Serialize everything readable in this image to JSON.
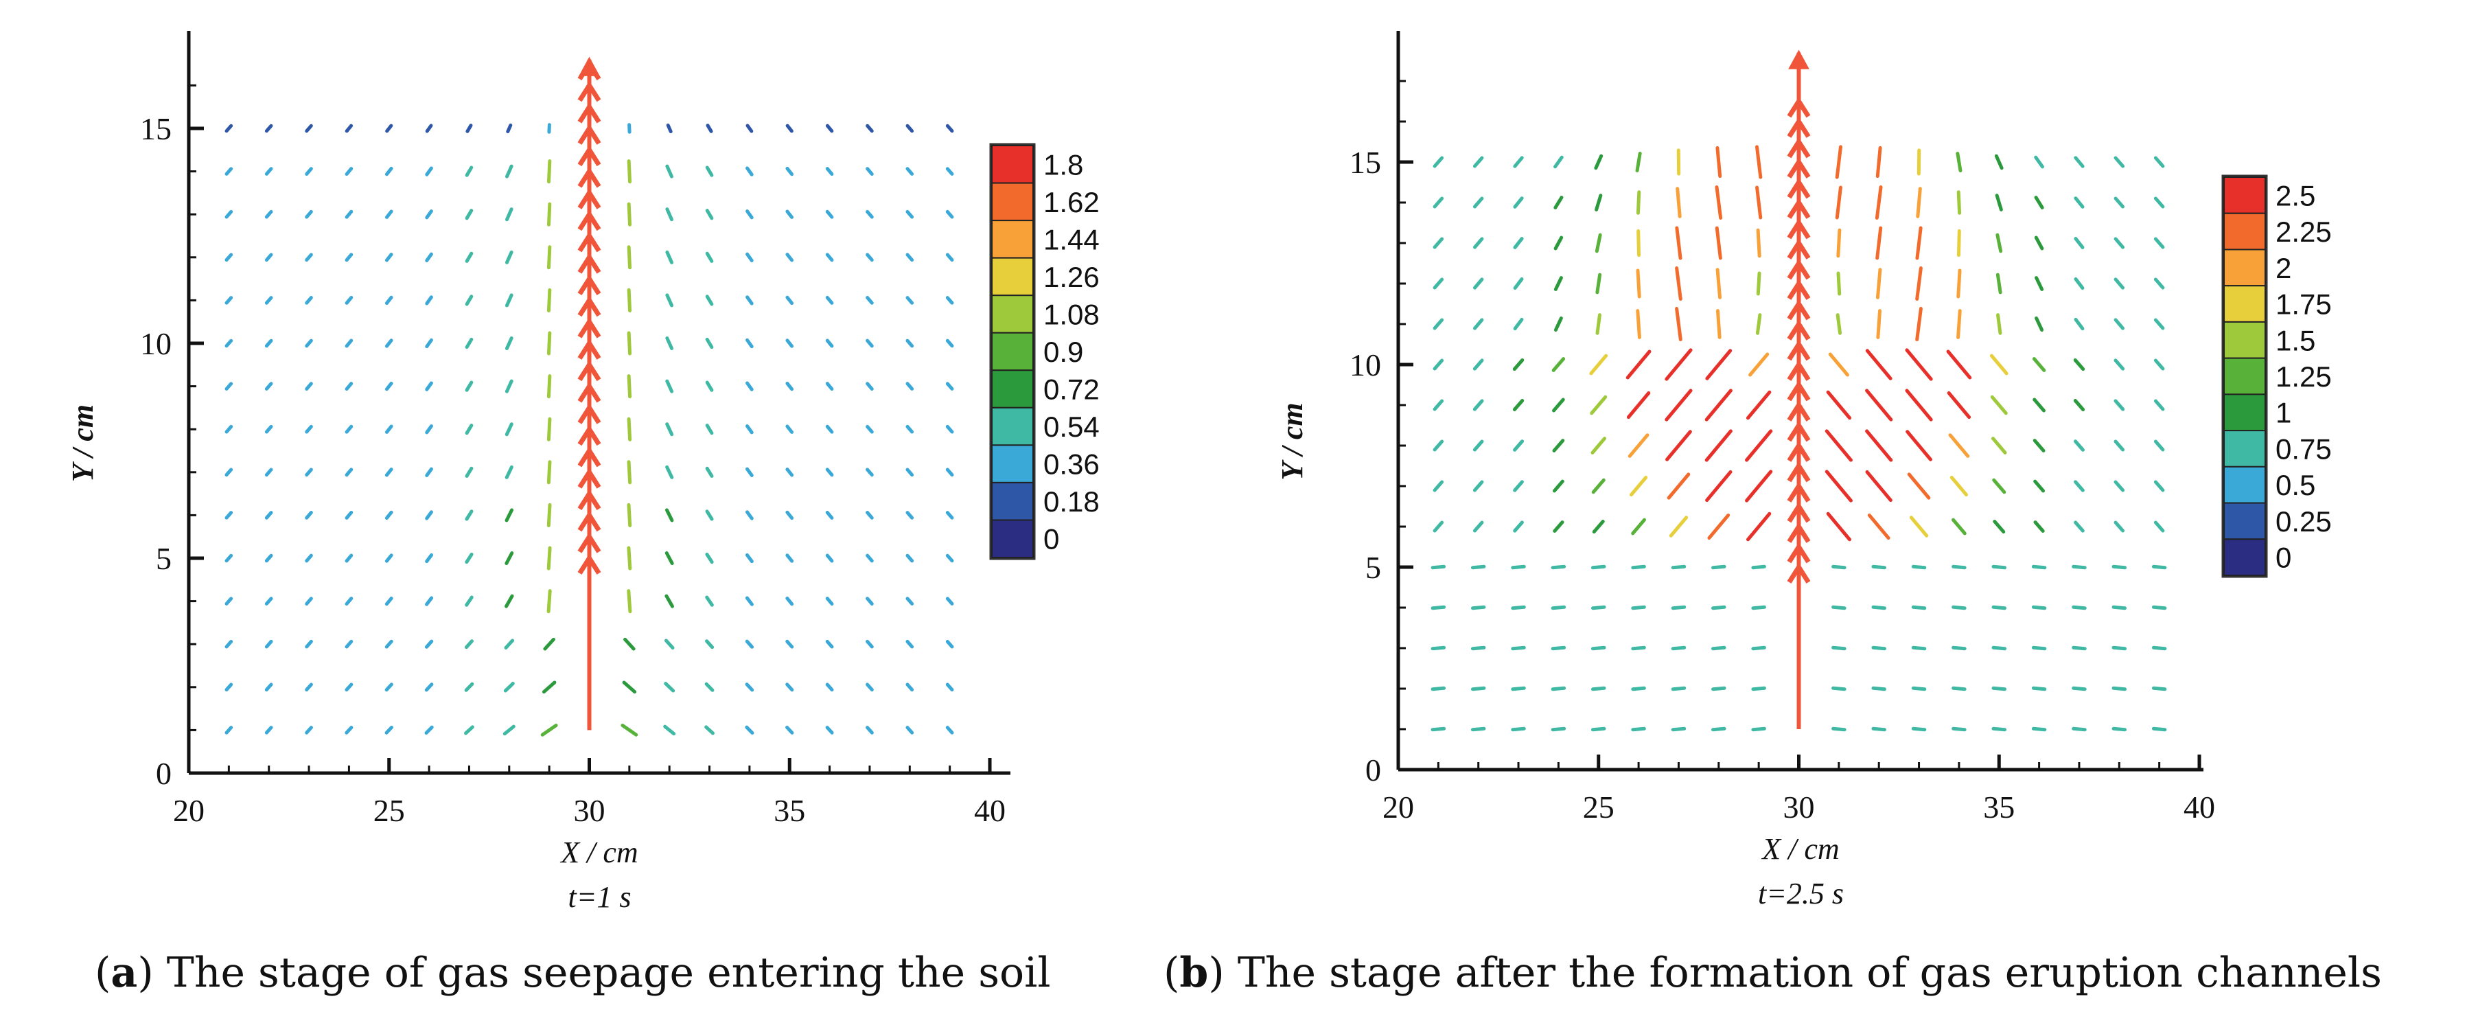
{
  "chart_data": [
    {
      "id": "a",
      "type": "vector-field",
      "xlabel": "X / cm",
      "ylabel": "Y / cm",
      "time_label": "t=1 s",
      "xlim": [
        20,
        40
      ],
      "ylim": [
        0,
        17
      ],
      "xticks": [
        20,
        25,
        30,
        35,
        40
      ],
      "yticks": [
        0,
        5,
        10,
        15
      ],
      "grid": false,
      "legend_position": "right",
      "legend_levels": [
        "1.8",
        "1.62",
        "1.44",
        "1.26",
        "1.08",
        "0.9",
        "0.72",
        "0.54",
        "0.36",
        "0.18",
        "0"
      ],
      "legend_colors": [
        "#e8302a",
        "#f26a2c",
        "#f8a138",
        "#e6cf3a",
        "#9ec93a",
        "#58b23a",
        "#2b9a3c",
        "#3fb9a4",
        "#3ba9d8",
        "#2f57a8",
        "#2a2d82"
      ],
      "max_magnitude": 1.8,
      "jet": {
        "x": 30,
        "y_start": 1,
        "y_end": 16.6,
        "arrowheads_from": 5,
        "arrowheads_to": 16.5,
        "arrowhead_step": 0.5
      },
      "field_x_range": [
        21,
        39
      ],
      "field_y_range": [
        1,
        15
      ],
      "field_step": 1
    },
    {
      "id": "b",
      "type": "vector-field",
      "xlabel": "X / cm",
      "ylabel": "Y / cm",
      "time_label": "t=2.5 s",
      "xlim": [
        20,
        40
      ],
      "ylim": [
        0,
        18
      ],
      "xticks": [
        20,
        25,
        30,
        35,
        40
      ],
      "yticks": [
        0,
        5,
        10,
        15
      ],
      "grid": false,
      "legend_position": "right",
      "legend_levels": [
        "2.5",
        "2.25",
        "2",
        "1.75",
        "1.5",
        "1.25",
        "1",
        "0.75",
        "0.5",
        "0.25",
        "0"
      ],
      "legend_colors": [
        "#e8302a",
        "#f26a2c",
        "#f8a138",
        "#e6cf3a",
        "#9ec93a",
        "#58b23a",
        "#2b9a3c",
        "#3fb9a4",
        "#3ba9d8",
        "#2f57a8",
        "#2a2d82"
      ],
      "max_magnitude": 2.5,
      "jet": {
        "x": 30,
        "y_start": 1,
        "y_end": 17.7,
        "arrowheads_from": 5,
        "arrowheads_to": 16.5,
        "arrowhead_step": 0.5
      },
      "field_x_range": [
        21,
        39
      ],
      "field_y_range": [
        1,
        15
      ],
      "field_step": 1
    }
  ],
  "captions": [
    {
      "letter": "a",
      "text": "The stage of gas seepage entering the soil"
    },
    {
      "letter": "b",
      "text": "The stage after the formation of gas eruption channels"
    }
  ]
}
